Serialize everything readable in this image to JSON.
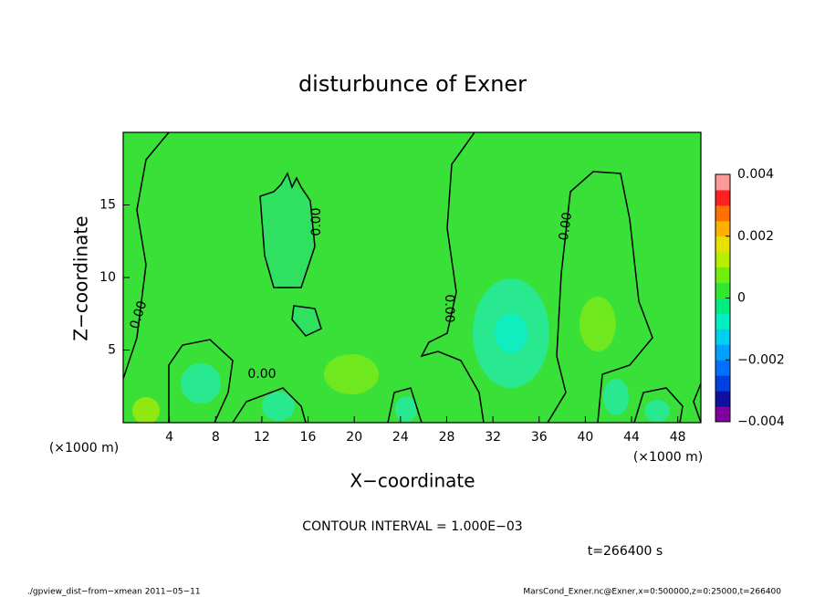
{
  "chart_data": {
    "type": "contour",
    "title": "disturbunce of Exner",
    "x_label": "X−coordinate",
    "y_label": "Z−coordinate",
    "x_unit_label": "(×1000 m)",
    "y_unit_label": "(×1000 m)",
    "xlim": [
      0,
      50
    ],
    "xticks": [
      4,
      8,
      12,
      16,
      20,
      24,
      28,
      32,
      36,
      40,
      44,
      48
    ],
    "ylim": [
      0,
      20
    ],
    "yticks": [
      5,
      10,
      15
    ],
    "contour_labels": [
      "0.00",
      "0.00",
      "0.00",
      "0.00",
      "0.00"
    ],
    "contour_interval": "CONTOUR INTERVAL = 1.000E−03",
    "time_label": "t=266400 s",
    "colorbar": {
      "clim": [
        -0.004,
        0.004
      ],
      "ticks": [
        {
          "value": 0.004,
          "label": "0.004"
        },
        {
          "value": 0.002,
          "label": "0.002"
        },
        0,
        {
          "value": -0.002,
          "label": "−0.002"
        },
        {
          "value": -0.004,
          "label": "−0.004"
        }
      ],
      "colors": [
        "#8000a0",
        "#1010a0",
        "#0040e0",
        "#0070ff",
        "#00a0ff",
        "#00d0f0",
        "#00eec0",
        "#00ee80",
        "#30e830",
        "#70ee10",
        "#b8ee00",
        "#e8e000",
        "#ffb000",
        "#ff7000",
        "#ff2020",
        "#ff9a9a"
      ]
    },
    "footer_left": "./gpview_dist−from−xmean  2011−05−11",
    "footer_right": "MarsCond_Exner.nc@Exner,x=0:500000,z=0:25000,t=266400"
  }
}
